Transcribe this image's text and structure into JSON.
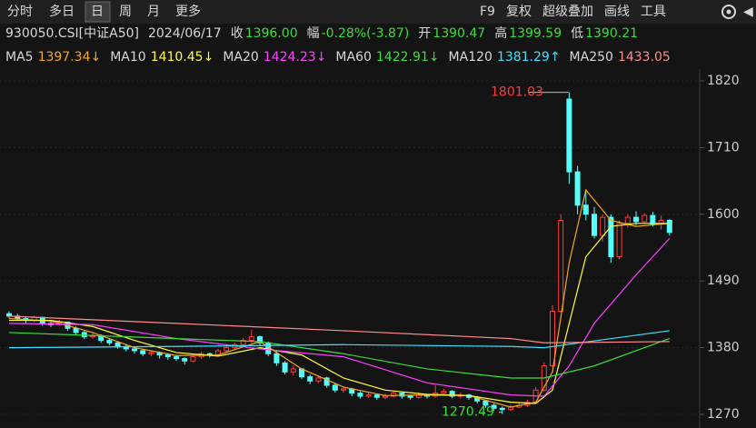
{
  "toolbar": {
    "tabs": [
      "分时",
      "多日",
      "日",
      "周",
      "月",
      "更多"
    ],
    "selected": 2,
    "tools": [
      "F9",
      "复权",
      "超级叠加",
      "画线",
      "工具"
    ]
  },
  "info": {
    "code": "930050.CSI[中证A50]",
    "date": "2024/06/17",
    "close_label": "收",
    "close": "1396.00",
    "change_label": "幅",
    "change": "-0.28%(-3.87)",
    "open_label": "开",
    "open": "1390.47",
    "high_label": "高",
    "high": "1399.59",
    "low_label": "低",
    "low": "1390.21"
  },
  "ma_values": [
    "1397.34↓",
    "1410.45↓",
    "1424.23↓",
    "1422.91↓",
    "1381.29↑",
    "1433.05"
  ],
  "chart_data": {
    "type": "candlestick",
    "ylim": [
      1270,
      1820
    ],
    "yticks": [
      1820,
      1710,
      1600,
      1490,
      1380,
      1270
    ],
    "up_color": "#ff3b3b",
    "down_color": "#54fcfc",
    "candles": [
      [
        1436,
        1440,
        1428,
        1432
      ],
      [
        1432,
        1436,
        1425,
        1428
      ],
      [
        1428,
        1432,
        1420,
        1425
      ],
      [
        1425,
        1433,
        1422,
        1430
      ],
      [
        1430,
        1431,
        1416,
        1420
      ],
      [
        1420,
        1424,
        1414,
        1418
      ],
      [
        1418,
        1426,
        1416,
        1422
      ],
      [
        1422,
        1423,
        1408,
        1412
      ],
      [
        1412,
        1415,
        1402,
        1405
      ],
      [
        1405,
        1408,
        1394,
        1398
      ],
      [
        1398,
        1404,
        1395,
        1400
      ],
      [
        1400,
        1402,
        1388,
        1392
      ],
      [
        1392,
        1395,
        1384,
        1388
      ],
      [
        1388,
        1390,
        1378,
        1382
      ],
      [
        1382,
        1386,
        1374,
        1378
      ],
      [
        1378,
        1382,
        1370,
        1375
      ],
      [
        1375,
        1378,
        1366,
        1370
      ],
      [
        1370,
        1376,
        1366,
        1372
      ],
      [
        1372,
        1374,
        1362,
        1368
      ],
      [
        1368,
        1371,
        1360,
        1365
      ],
      [
        1365,
        1368,
        1358,
        1362
      ],
      [
        1362,
        1364,
        1352,
        1358
      ],
      [
        1358,
        1368,
        1356,
        1365
      ],
      [
        1365,
        1373,
        1362,
        1370
      ],
      [
        1370,
        1372,
        1364,
        1368
      ],
      [
        1368,
        1378,
        1366,
        1375
      ],
      [
        1375,
        1384,
        1372,
        1380
      ],
      [
        1380,
        1388,
        1376,
        1385
      ],
      [
        1385,
        1396,
        1382,
        1392
      ],
      [
        1392,
        1410,
        1388,
        1398
      ],
      [
        1398,
        1400,
        1384,
        1388
      ],
      [
        1388,
        1390,
        1366,
        1370
      ],
      [
        1370,
        1374,
        1350,
        1355
      ],
      [
        1355,
        1358,
        1336,
        1340
      ],
      [
        1340,
        1350,
        1334,
        1345
      ],
      [
        1345,
        1346,
        1328,
        1332
      ],
      [
        1332,
        1336,
        1320,
        1325
      ],
      [
        1325,
        1334,
        1322,
        1330
      ],
      [
        1330,
        1332,
        1314,
        1318
      ],
      [
        1318,
        1322,
        1306,
        1310
      ],
      [
        1310,
        1316,
        1306,
        1312
      ],
      [
        1312,
        1314,
        1300,
        1305
      ],
      [
        1305,
        1308,
        1296,
        1300
      ],
      [
        1300,
        1306,
        1297,
        1302
      ],
      [
        1302,
        1304,
        1294,
        1298
      ],
      [
        1298,
        1304,
        1295,
        1300
      ],
      [
        1300,
        1308,
        1298,
        1305
      ],
      [
        1305,
        1306,
        1296,
        1300
      ],
      [
        1300,
        1302,
        1294,
        1298
      ],
      [
        1298,
        1306,
        1296,
        1302
      ],
      [
        1302,
        1304,
        1296,
        1300
      ],
      [
        1300,
        1318,
        1298,
        1305
      ],
      [
        1305,
        1312,
        1302,
        1308
      ],
      [
        1308,
        1310,
        1297,
        1300
      ],
      [
        1300,
        1306,
        1296,
        1302
      ],
      [
        1302,
        1304,
        1294,
        1298
      ],
      [
        1298,
        1300,
        1288,
        1292
      ],
      [
        1292,
        1294,
        1281,
        1285
      ],
      [
        1285,
        1288,
        1276,
        1280
      ],
      [
        1280,
        1283,
        1270.49,
        1278
      ],
      [
        1278,
        1286,
        1276,
        1282
      ],
      [
        1282,
        1290,
        1280,
        1285
      ],
      [
        1285,
        1294,
        1282,
        1290
      ],
      [
        1290,
        1315,
        1288,
        1310
      ],
      [
        1310,
        1356,
        1308,
        1350
      ],
      [
        1350,
        1450,
        1348,
        1440
      ],
      [
        1440,
        1600,
        1438,
        1590
      ],
      [
        1790,
        1801.03,
        1650,
        1670
      ],
      [
        1670,
        1680,
        1600,
        1615
      ],
      [
        1615,
        1640,
        1590,
        1600
      ],
      [
        1600,
        1612,
        1560,
        1565
      ],
      [
        1565,
        1600,
        1555,
        1595
      ],
      [
        1595,
        1600,
        1520,
        1530
      ],
      [
        1530,
        1590,
        1525,
        1585
      ],
      [
        1585,
        1600,
        1578,
        1595
      ],
      [
        1595,
        1605,
        1582,
        1588
      ],
      [
        1588,
        1602,
        1585,
        1598
      ],
      [
        1598,
        1604,
        1580,
        1584
      ],
      [
        1584,
        1598,
        1575,
        1590
      ],
      [
        1590,
        1592,
        1565,
        1570
      ]
    ],
    "series": [
      {
        "name": "MA5",
        "color": "#f5a623",
        "x": [
          0,
          5,
          10,
          15,
          20,
          25,
          30,
          35,
          40,
          45,
          50,
          55,
          60,
          63,
          65,
          67,
          69,
          72,
          75,
          79
        ],
        "values": [
          1428,
          1424,
          1405,
          1380,
          1367,
          1368,
          1390,
          1345,
          1315,
          1301,
          1302,
          1301,
          1282,
          1290,
          1340,
          1520,
          1640,
          1590,
          1580,
          1585
        ]
      },
      {
        "name": "MA10",
        "color": "#ffff3c",
        "x": [
          0,
          5,
          10,
          15,
          20,
          25,
          30,
          35,
          40,
          45,
          50,
          55,
          60,
          63,
          65,
          67,
          69,
          72,
          75,
          79
        ],
        "values": [
          1425,
          1425,
          1415,
          1392,
          1372,
          1366,
          1380,
          1368,
          1330,
          1310,
          1303,
          1301,
          1290,
          1288,
          1310,
          1420,
          1530,
          1580,
          1585,
          1585
        ]
      },
      {
        "name": "MA20",
        "color": "#ff40ff",
        "x": [
          0,
          10,
          20,
          30,
          40,
          50,
          60,
          64,
          67,
          70,
          75,
          79
        ],
        "values": [
          1420,
          1418,
          1395,
          1378,
          1365,
          1322,
          1302,
          1300,
          1350,
          1420,
          1500,
          1560
        ]
      },
      {
        "name": "MA60",
        "color": "#3cdc3c",
        "x": [
          0,
          10,
          20,
          30,
          40,
          50,
          60,
          64,
          70,
          79
        ],
        "values": [
          1405,
          1400,
          1395,
          1390,
          1370,
          1345,
          1330,
          1330,
          1350,
          1395
        ]
      },
      {
        "name": "MA120",
        "color": "#40e0ff",
        "x": [
          0,
          20,
          40,
          60,
          64,
          79
        ],
        "values": [
          1380,
          1382,
          1385,
          1382,
          1380,
          1408
        ]
      },
      {
        "name": "MA250",
        "color": "#ff8c8c",
        "x": [
          0,
          20,
          40,
          60,
          64,
          79
        ],
        "values": [
          1432,
          1420,
          1408,
          1395,
          1388,
          1390
        ]
      }
    ],
    "annotations": [
      "1801.03",
      "1270.49"
    ]
  }
}
